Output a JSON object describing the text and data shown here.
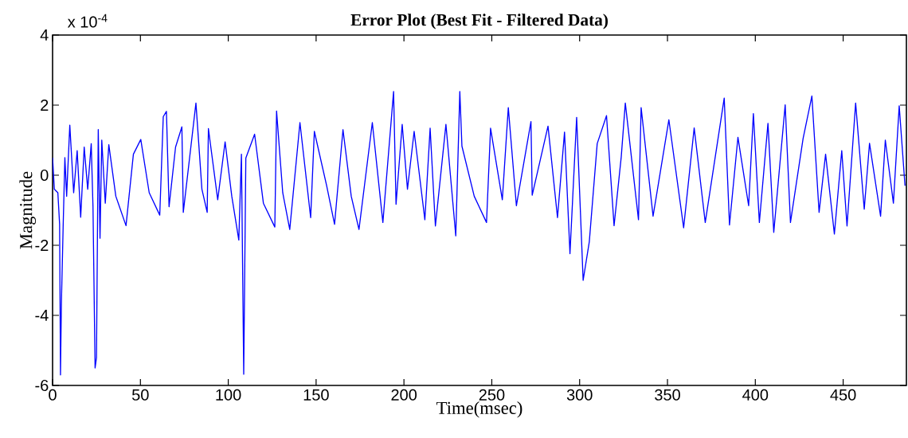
{
  "chart_data": {
    "type": "line",
    "title": "Error Plot (Best Fit - Filtered Data)",
    "xlabel": "Time(msec)",
    "ylabel": "Magnitude",
    "annotations": [
      "x 10$^{-4}$"
    ],
    "xlim": [
      0,
      486
    ],
    "ylim": [
      -6,
      4
    ],
    "xticks": [
      0,
      50,
      100,
      150,
      200,
      250,
      300,
      350,
      400,
      450
    ],
    "yticks": [
      -6,
      -4,
      -2,
      0,
      2,
      4
    ],
    "marker": "none",
    "line_style": "solid",
    "series": [
      {
        "color": "#0000ff",
        "x": [
          0,
          1,
          3,
          4,
          4.5,
          5,
          6,
          7,
          8,
          9.8,
          12,
          14,
          16,
          18,
          20,
          22,
          23,
          24.2,
          25,
          26,
          27,
          28,
          30,
          32,
          36,
          41.8,
          46,
          50.2,
          55,
          61,
          63,
          64.8,
          66.3,
          70,
          73.6,
          74.4,
          78,
          81.6,
          85,
          88,
          88.7,
          94,
          98.2,
          102,
          106,
          107.5,
          108.8,
          110,
          115,
          120,
          126.5,
          127.5,
          131,
          135,
          140.8,
          146.9,
          149,
          156,
          160.5,
          165.3,
          170,
          174.4,
          182,
          188,
          194.1,
          195.5,
          199,
          202,
          205.8,
          211.9,
          214.9,
          217.9,
          223.9,
          229.5,
          231.8,
          233,
          240,
          247,
          249.3,
          256,
          259.4,
          264,
          272.3,
          273,
          282,
          287.4,
          291.4,
          294.5,
          298.3,
          302,
          305.5,
          310,
          315.3,
          319.6,
          323.7,
          326,
          333.5,
          335,
          341.8,
          350.8,
          359.2,
          365.2,
          371.5,
          382.3,
          385.3,
          390.1,
          396.2,
          398.9,
          402.3,
          407.2,
          410.5,
          417,
          420,
          427.2,
          432.2,
          436.3,
          440,
          445,
          449.2,
          452.2,
          457.1,
          462,
          465,
          471.3,
          474,
          478.6,
          481.9,
          485.2
        ],
        "values": [
          0.5,
          -0.4,
          -0.5,
          -1.4,
          -5.7,
          -3.7,
          -1.5,
          0.5,
          -0.6,
          1.43,
          -0.5,
          0.7,
          -1.2,
          0.8,
          -0.4,
          0.9,
          -0.9,
          -5.5,
          -5.2,
          1.3,
          -1.8,
          1.0,
          -0.8,
          0.87,
          -0.6,
          -1.44,
          0.6,
          1.02,
          -0.5,
          -1.14,
          1.67,
          1.82,
          -0.9,
          0.8,
          1.38,
          -1.06,
          0.5,
          2.06,
          -0.4,
          -1.06,
          1.33,
          -0.7,
          0.95,
          -0.6,
          -1.85,
          0.6,
          -5.68,
          0.49,
          1.17,
          -0.8,
          -1.48,
          1.83,
          -0.5,
          -1.55,
          1.5,
          -1.21,
          1.25,
          -0.3,
          -1.4,
          1.3,
          -0.6,
          -1.55,
          1.5,
          -1.35,
          2.39,
          -0.83,
          1.45,
          -0.4,
          1.25,
          -1.27,
          1.34,
          -1.45,
          1.45,
          -1.73,
          2.39,
          0.83,
          -0.6,
          -1.35,
          1.34,
          -0.7,
          1.93,
          -0.87,
          1.53,
          -0.57,
          1.4,
          -1.21,
          1.23,
          -2.24,
          1.65,
          -3.0,
          -1.9,
          0.9,
          1.7,
          -1.44,
          0.53,
          2.06,
          -1.27,
          1.93,
          -1.17,
          1.58,
          -1.5,
          1.35,
          -1.35,
          2.2,
          -1.42,
          1.08,
          -0.87,
          1.76,
          -1.35,
          1.48,
          -1.63,
          2.01,
          -1.35,
          1.05,
          2.26,
          -1.06,
          0.6,
          -1.68,
          0.7,
          -1.45,
          2.06,
          -0.97,
          0.91,
          -1.17,
          1.0,
          -0.8,
          1.98,
          -0.3
        ]
      }
    ]
  }
}
